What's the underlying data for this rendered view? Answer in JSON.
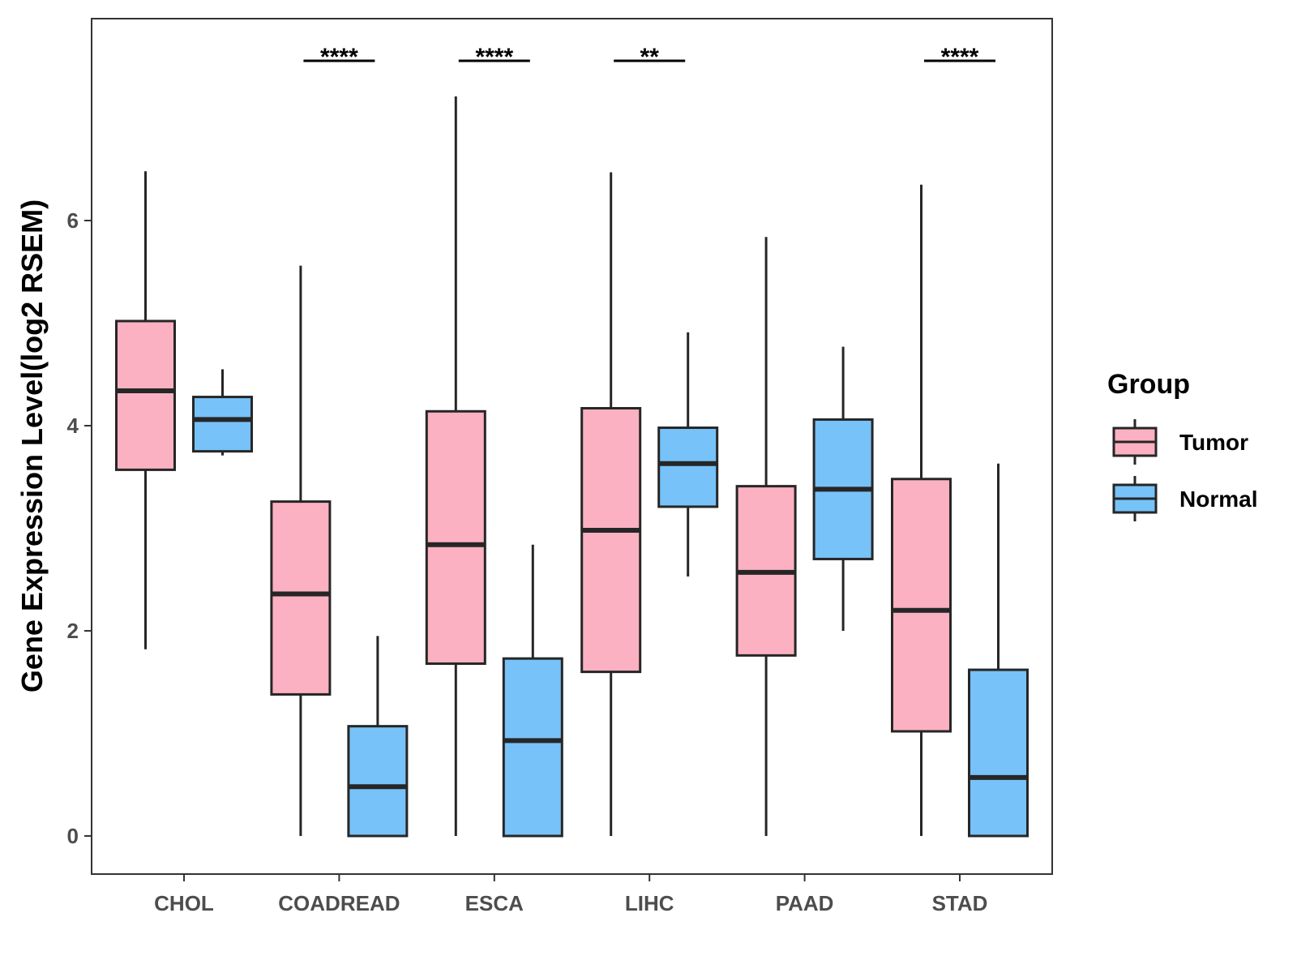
{
  "chart_data": {
    "type": "box",
    "title": "",
    "xlabel": "",
    "ylabel": "Gene Expression Level(log2 RSEM)",
    "ylim": [
      -0.55,
      7.9
    ],
    "yticks": [
      0,
      2,
      4,
      6
    ],
    "grid": false,
    "categories": [
      "CHOL",
      "COADREAD",
      "ESCA",
      "LIHC",
      "PAAD",
      "STAD"
    ],
    "legend": {
      "title": "Group",
      "position": "right",
      "entries": [
        {
          "name": "Tumor",
          "color": "#fbb1c1"
        },
        {
          "name": "Normal",
          "color": "#77c2f8"
        }
      ]
    },
    "series": [
      {
        "name": "Tumor",
        "color": "#fbb1c1",
        "boxes": [
          {
            "min": 1.82,
            "q1": 3.57,
            "median": 4.34,
            "q3": 5.02,
            "max": 6.48
          },
          {
            "min": 0.0,
            "q1": 1.38,
            "median": 2.36,
            "q3": 3.26,
            "max": 5.56
          },
          {
            "min": 0.0,
            "q1": 1.68,
            "median": 2.84,
            "q3": 4.14,
            "max": 7.21
          },
          {
            "min": 0.0,
            "q1": 1.6,
            "median": 2.98,
            "q3": 4.17,
            "max": 6.47
          },
          {
            "min": 0.0,
            "q1": 1.76,
            "median": 2.57,
            "q3": 3.41,
            "max": 5.84
          },
          {
            "min": 0.0,
            "q1": 1.02,
            "median": 2.2,
            "q3": 3.48,
            "max": 6.35
          }
        ]
      },
      {
        "name": "Normal",
        "color": "#77c2f8",
        "boxes": [
          {
            "min": 3.71,
            "q1": 3.75,
            "median": 4.06,
            "q3": 4.28,
            "max": 4.55
          },
          {
            "min": 0.0,
            "q1": 0.0,
            "median": 0.48,
            "q3": 1.07,
            "max": 1.95
          },
          {
            "min": 0.0,
            "q1": 0.0,
            "median": 0.93,
            "q3": 1.73,
            "max": 2.84
          },
          {
            "min": 2.53,
            "q1": 3.21,
            "median": 3.63,
            "q3": 3.98,
            "max": 4.91
          },
          {
            "min": 2.0,
            "q1": 2.7,
            "median": 3.38,
            "q3": 4.06,
            "max": 4.77
          },
          {
            "min": 0.0,
            "q1": 0.0,
            "median": 0.57,
            "q3": 1.62,
            "max": 3.63
          }
        ]
      }
    ],
    "annotations": [
      {
        "category": "COADREAD",
        "label": "****"
      },
      {
        "category": "ESCA",
        "label": "****"
      },
      {
        "category": "LIHC",
        "label": "**"
      },
      {
        "category": "STAD",
        "label": "****"
      }
    ]
  }
}
